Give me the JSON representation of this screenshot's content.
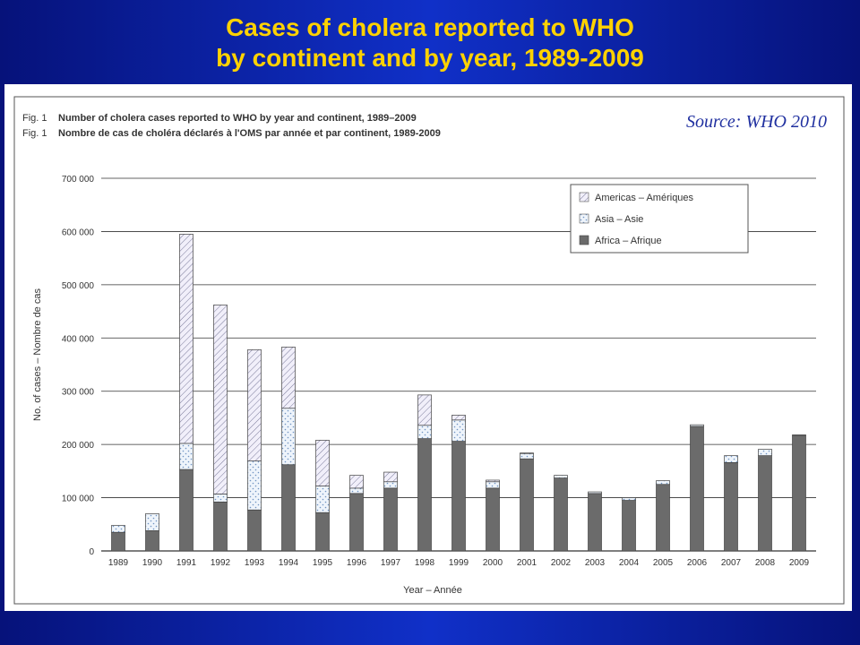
{
  "slide": {
    "title_line1": "Cases of cholera reported to WHO",
    "title_line2": "by continent and by year, 1989-2009",
    "source": "Source: WHO 2010"
  },
  "figure": {
    "fig_no_en": "Fig. 1",
    "caption_en": "Number of cholera cases reported to WHO by year and continent, 1989–2009",
    "fig_no_fr": "Fig. 1",
    "caption_fr": "Nombre de cas de choléra déclarés à l'OMS par année et par continent, 1989-2009"
  },
  "colors": {
    "africa": "#6b6b6b",
    "asia_bg": "#eef4fb",
    "asia_dot": "#6f93c2",
    "americas_bg": "#f1effa",
    "americas_line": "#7a7a9a",
    "gridline": "#333333",
    "title": "#ffd200",
    "source": "#2030a0"
  },
  "chart_data": {
    "type": "bar",
    "stacked": true,
    "categories": [
      "1989",
      "1990",
      "1991",
      "1992",
      "1993",
      "1994",
      "1995",
      "1996",
      "1997",
      "1998",
      "1999",
      "2000",
      "2001",
      "2002",
      "2003",
      "2004",
      "2005",
      "2006",
      "2007",
      "2008",
      "2009"
    ],
    "series": [
      {
        "name": "Africa – Afrique",
        "values": [
          35000,
          38000,
          153000,
          92000,
          77000,
          162000,
          72000,
          108000,
          118000,
          211000,
          206000,
          118000,
          173000,
          137000,
          108000,
          95000,
          125000,
          234000,
          166000,
          179000,
          217000
        ]
      },
      {
        "name": "Asia – Asie",
        "values": [
          13000,
          32000,
          49000,
          15000,
          92000,
          106000,
          50000,
          10000,
          12000,
          25000,
          40000,
          12000,
          10000,
          5000,
          3000,
          5000,
          7000,
          3000,
          13000,
          12000,
          1000
        ]
      },
      {
        "name": "Americas – Amériques",
        "values": [
          0,
          0,
          393000,
          355000,
          209000,
          115000,
          86000,
          24000,
          18000,
          57000,
          9000,
          3000,
          1000,
          0,
          0,
          0,
          0,
          0,
          0,
          0,
          0
        ]
      }
    ],
    "xlabel": "Year – Année",
    "ylabel": "No. of cases – Nombre de cas",
    "ylim": [
      0,
      700000
    ],
    "yticks": [
      0,
      100000,
      200000,
      300000,
      400000,
      500000,
      600000,
      700000
    ],
    "ytick_labels": [
      "0",
      "100 000",
      "200 000",
      "300 000",
      "400 000",
      "500 000",
      "600 000",
      "700 000"
    ],
    "grid": true,
    "legend_position": "top-right"
  }
}
